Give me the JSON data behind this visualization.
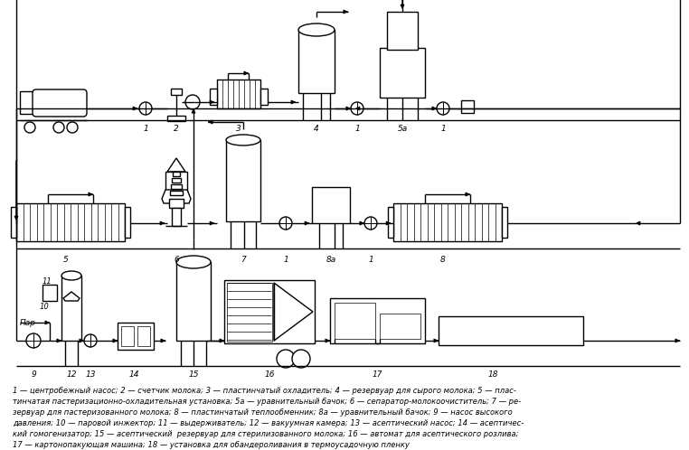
{
  "bg": "#ffffff",
  "lc": "#000000",
  "lw": 1.0,
  "fw": 7.62,
  "fh": 4.98,
  "cap": [
    "1 — центробежный насос; 2 — счетчик молока; 3 — пластинчатый охладитель; 4 — резервуар для сырого молока; 5 — плас-",
    "тинчатая пастеризационно-охладительная установка; 5а — уравнительный бачок; 6 — сепаратор-молокоочиститель; 7 — ре-",
    "зервуар для пастеризованного молока; 8 — пластинчатый теплообменник; 8а — уравнительный бачок; 9 — насос высокого",
    "давления; 10 — паровой инжектор; 11 — выдерживатель; 12 — вакуумная камера; 13 — асептический насос; 14 — асептичес-",
    "кий гомогенизатор; 15 — асептический  резервуар для стерилизованного молока; 16 — автомат для асептического розлива;",
    "17 — картонопакующая машина; 18 — установка для обандероливания в термоусадочную пленку"
  ]
}
